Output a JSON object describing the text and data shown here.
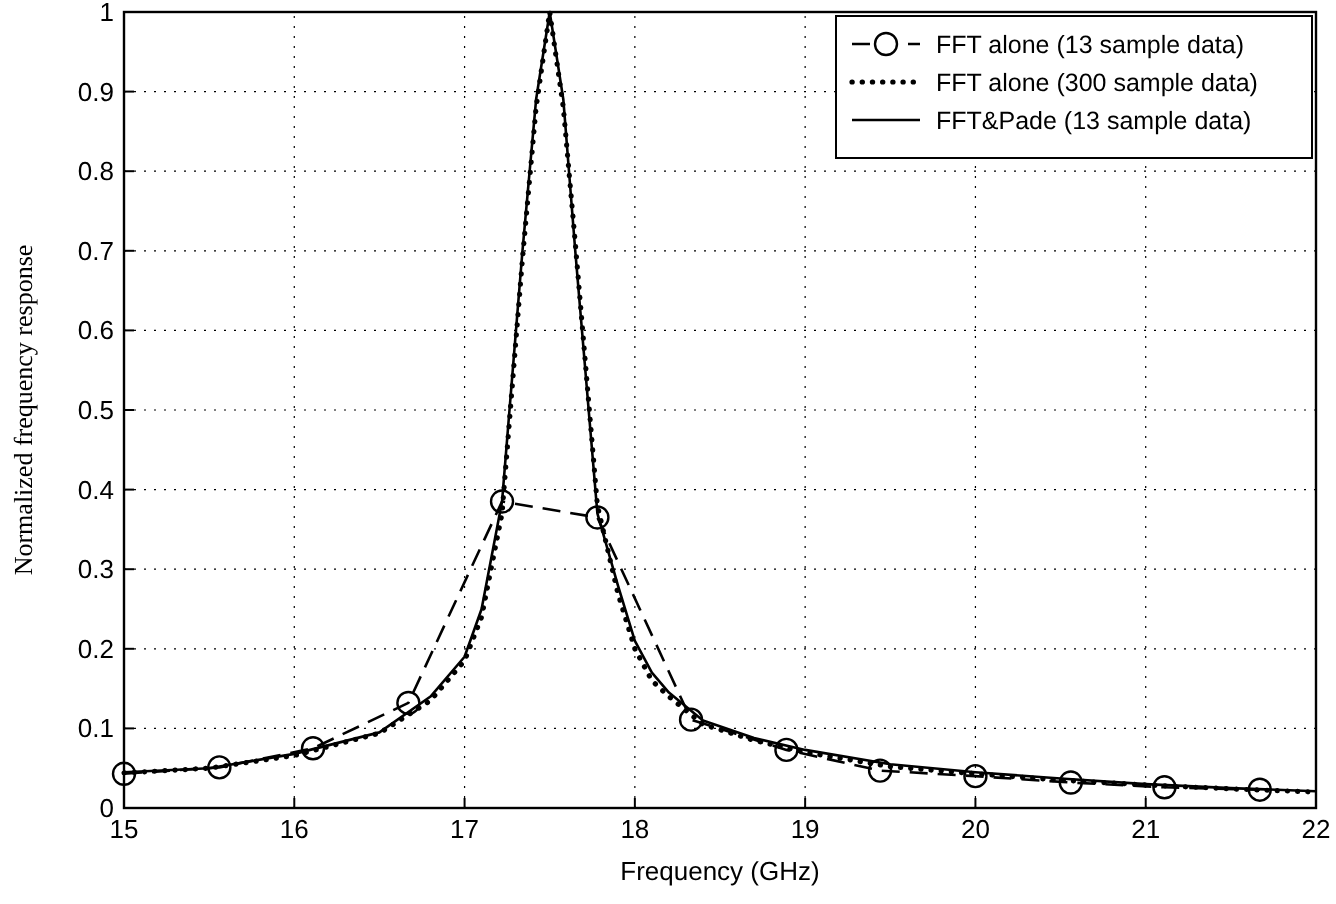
{
  "chart_data": {
    "type": "line",
    "xlabel": "Frequency (GHz)",
    "ylabel": "Normalized frequency response",
    "xlim": [
      15,
      22
    ],
    "ylim": [
      0,
      1
    ],
    "xticks": [
      15,
      16,
      17,
      18,
      19,
      20,
      21,
      22
    ],
    "yticks": [
      0,
      0.1,
      0.2,
      0.3,
      0.4,
      0.5,
      0.6,
      0.7,
      0.8,
      0.9,
      1
    ],
    "grid": true,
    "legend": "top right",
    "series": [
      {
        "name": "FFT alone  (13 sample data)",
        "color": "#000000",
        "marker": "circle",
        "line_style": "dashed",
        "x": [
          15,
          15.56,
          16.11,
          16.67,
          17.22,
          17.78,
          18.33,
          18.89,
          19.44,
          20,
          20.56,
          21.11,
          21.67
        ],
        "values": [
          0.043,
          0.051,
          0.075,
          0.132,
          0.385,
          0.365,
          0.111,
          0.073,
          0.047,
          0.04,
          0.032,
          0.026,
          0.023
        ]
      },
      {
        "name": "FFT alone  (300 sample data)",
        "color": "#000000",
        "marker": "none",
        "line_style": "dotted",
        "x": [
          15,
          15.5,
          16,
          16.5,
          16.8,
          17,
          17.1,
          17.22,
          17.34,
          17.42,
          17.5,
          17.58,
          17.65,
          17.78,
          17.9,
          18,
          18.1,
          18.2,
          18.4,
          18.7,
          19,
          19.5,
          20,
          20.5,
          21,
          21.5,
          22
        ],
        "values": [
          0.044,
          0.05,
          0.066,
          0.094,
          0.135,
          0.185,
          0.24,
          0.37,
          0.69,
          0.88,
          1,
          0.88,
          0.71,
          0.38,
          0.27,
          0.2,
          0.16,
          0.14,
          0.105,
          0.085,
          0.07,
          0.052,
          0.043,
          0.035,
          0.029,
          0.024,
          0.02
        ]
      },
      {
        "name": "FFT&Pade (13 sample data)",
        "color": "#000000",
        "marker": "none",
        "line_style": "solid",
        "x": [
          15,
          15.5,
          16,
          16.5,
          16.8,
          17,
          17.1,
          17.22,
          17.34,
          17.42,
          17.5,
          17.58,
          17.65,
          17.78,
          17.9,
          18,
          18.1,
          18.2,
          18.4,
          18.7,
          19,
          19.5,
          20,
          20.5,
          21,
          21.5,
          22
        ],
        "values": [
          0.045,
          0.05,
          0.068,
          0.095,
          0.14,
          0.19,
          0.25,
          0.385,
          0.7,
          0.89,
          1,
          0.89,
          0.7,
          0.37,
          0.28,
          0.21,
          0.17,
          0.145,
          0.11,
          0.088,
          0.073,
          0.055,
          0.045,
          0.037,
          0.03,
          0.025,
          0.021
        ]
      }
    ]
  }
}
